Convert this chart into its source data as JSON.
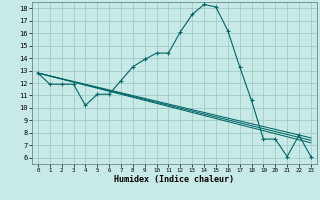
{
  "title": "",
  "xlabel": "Humidex (Indice chaleur)",
  "bg_color": "#c8eae6",
  "grid_color": "#a0ccc8",
  "line_color": "#006666",
  "xlim": [
    -0.5,
    23.5
  ],
  "ylim": [
    5.5,
    18.5
  ],
  "xticks": [
    0,
    1,
    2,
    3,
    4,
    5,
    6,
    7,
    8,
    9,
    10,
    11,
    12,
    13,
    14,
    15,
    16,
    17,
    18,
    19,
    20,
    21,
    22,
    23
  ],
  "yticks": [
    6,
    7,
    8,
    9,
    10,
    11,
    12,
    13,
    14,
    15,
    16,
    17,
    18
  ],
  "main_curve_x": [
    0,
    1,
    2,
    3,
    4,
    5,
    6,
    7,
    8,
    9,
    10,
    11,
    12,
    13,
    14,
    15,
    16,
    17,
    18,
    19,
    20,
    21,
    22,
    23
  ],
  "main_curve_y": [
    12.8,
    11.9,
    11.9,
    11.9,
    10.2,
    11.1,
    11.1,
    12.2,
    13.3,
    13.9,
    14.4,
    14.4,
    16.1,
    17.5,
    18.3,
    18.1,
    16.2,
    13.3,
    10.6,
    7.5,
    7.5,
    6.1,
    7.8,
    6.1
  ],
  "line2_x": [
    0,
    23
  ],
  "line2_y": [
    12.8,
    7.6
  ],
  "line3_x": [
    0,
    23
  ],
  "line3_y": [
    12.8,
    7.4
  ],
  "line4_x": [
    0,
    23
  ],
  "line4_y": [
    12.8,
    7.2
  ]
}
